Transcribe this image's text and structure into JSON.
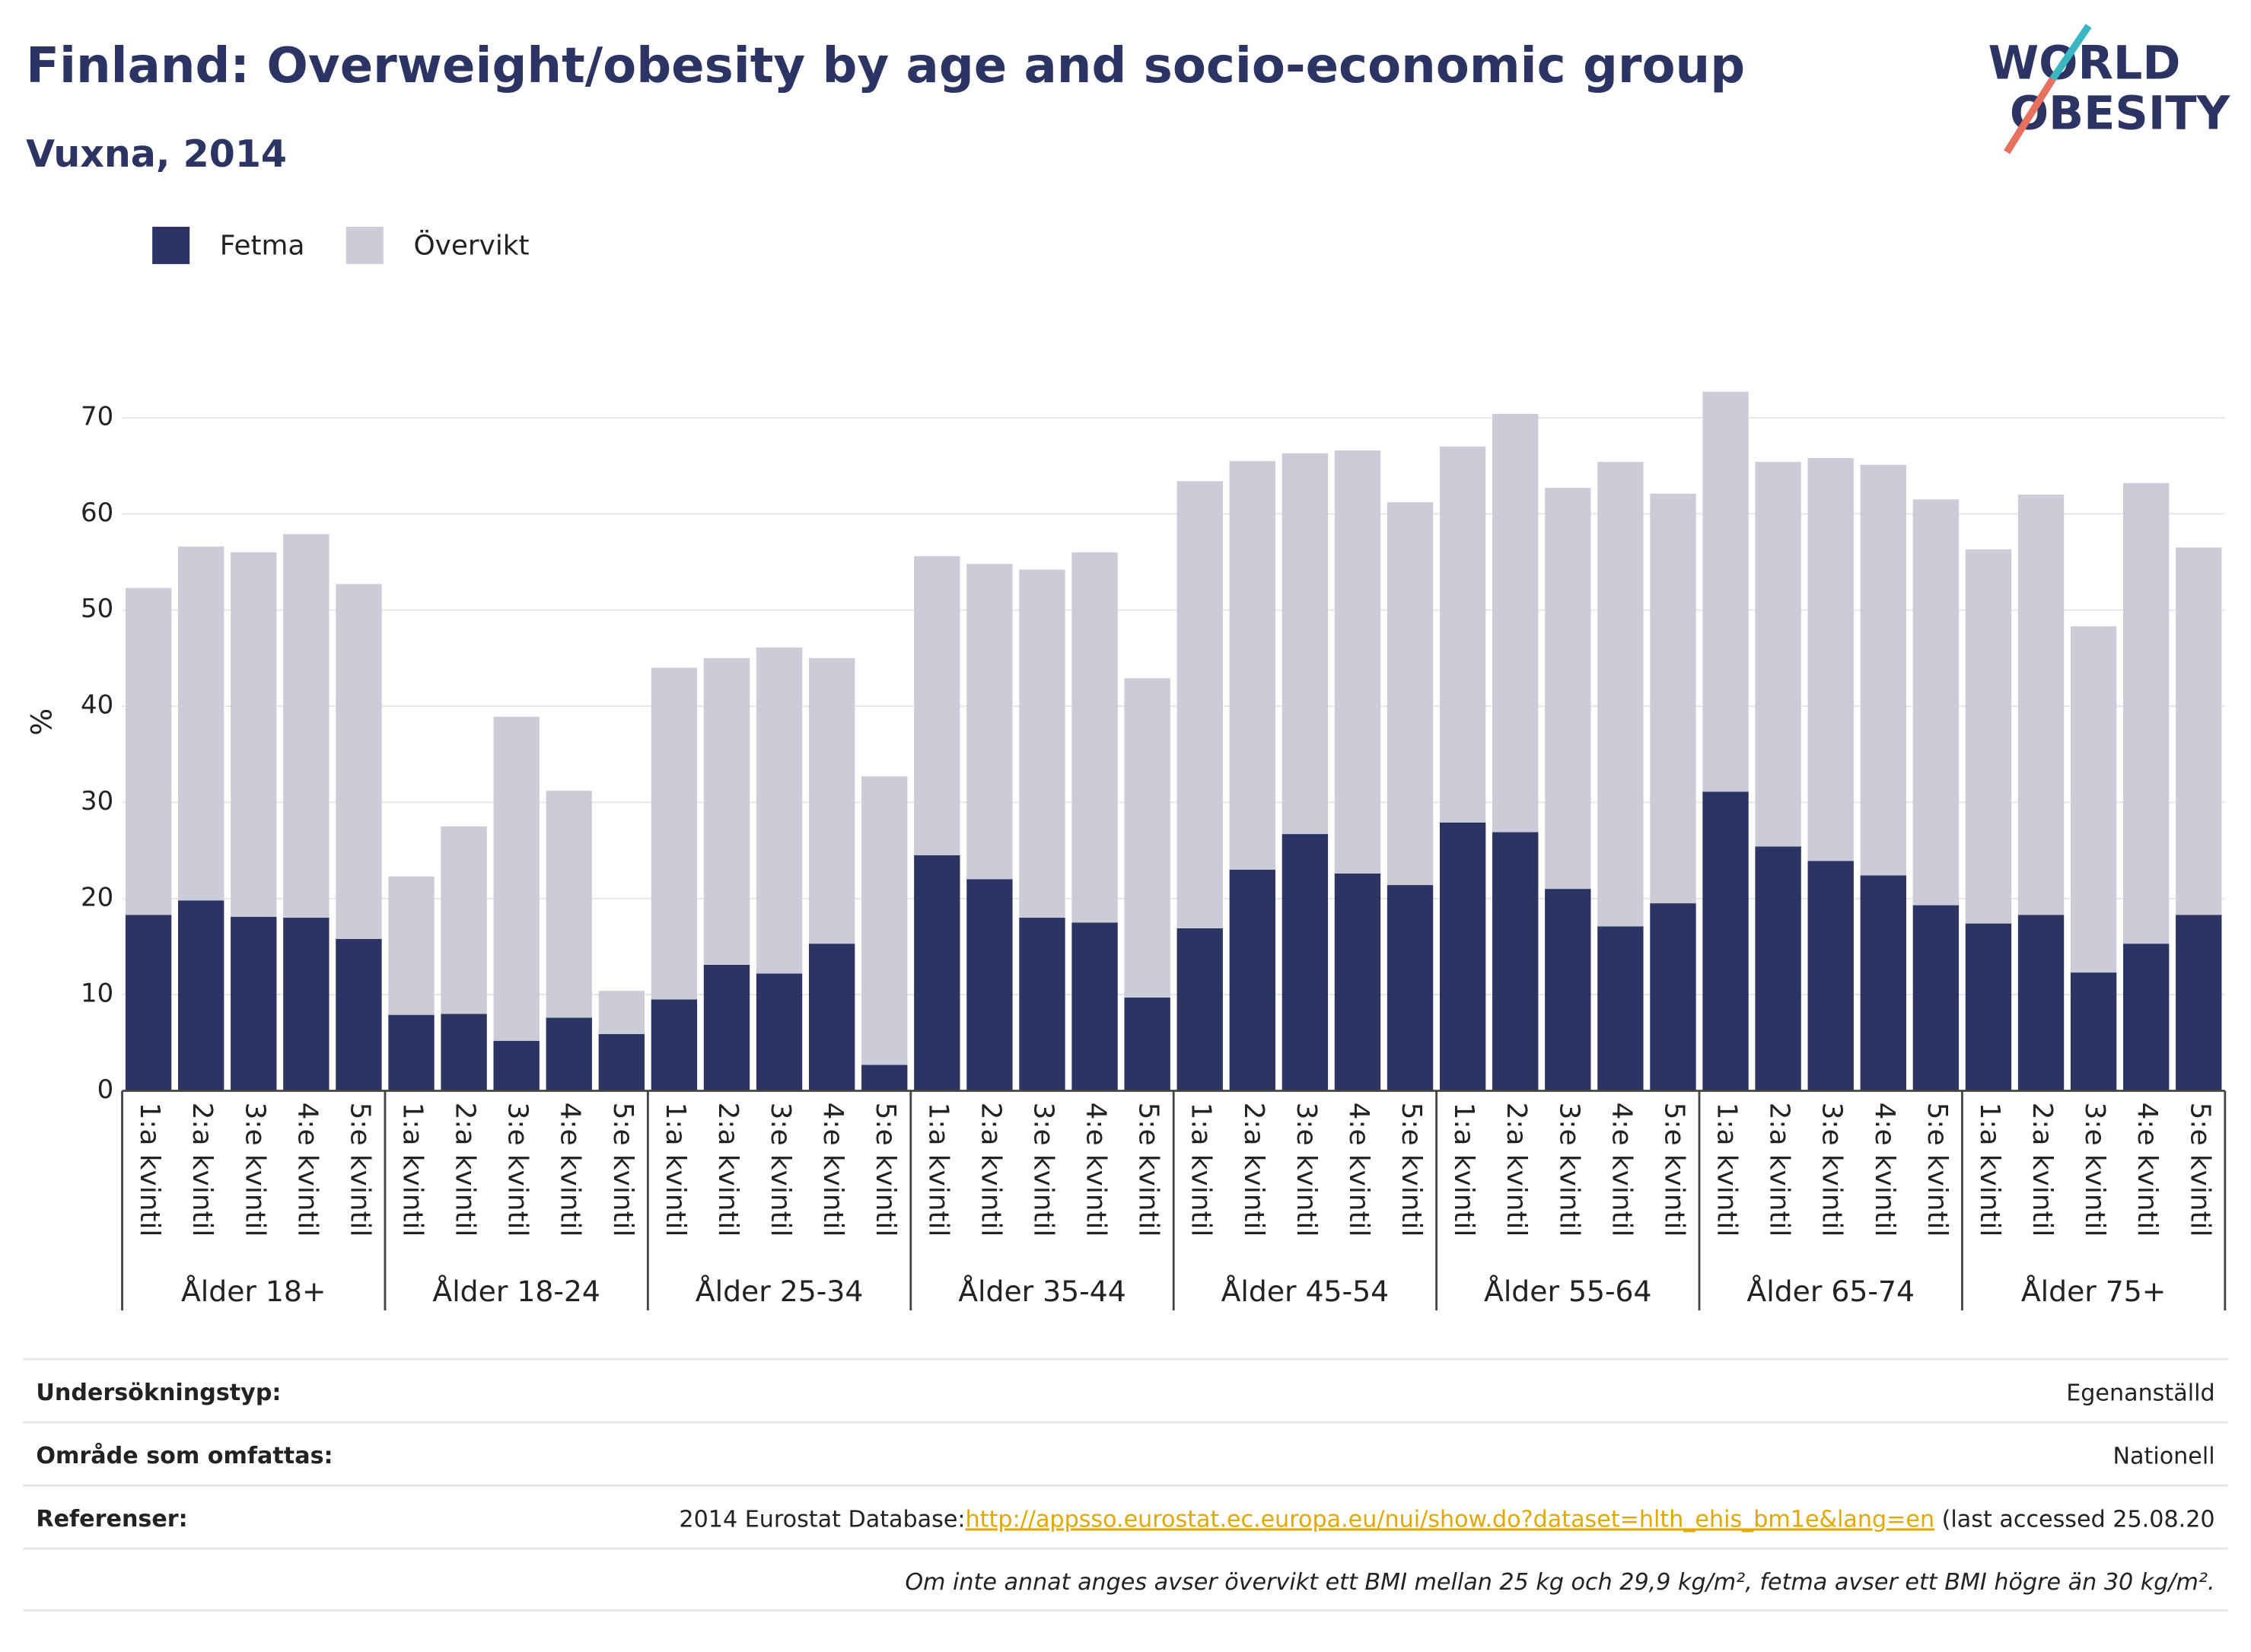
{
  "chart_data": {
    "type": "stacked_bar",
    "title": "Finland: Overweight/obesity by age and socio-economic group",
    "subtitle": "Vuxna, 2014",
    "logo": [
      "WORLD",
      "OBESITY"
    ],
    "ylabel": "%",
    "categories": [
      "1:a kvintil",
      "2:a kvintil",
      "3:e kvintil",
      "4:e kvintil",
      "5:e kvintil",
      "1:a kvintil",
      "2:a kvintil",
      "3:e kvintil",
      "4:e kvintil",
      "5:e kvintil",
      "1:a kvintil",
      "2:a kvintil",
      "3:e kvintil",
      "4:e kvintil",
      "5:e kvintil",
      "1:a kvintil",
      "2:a kvintil",
      "3:e kvintil",
      "4:e kvintil",
      "5:e kvintil",
      "1:a kvintil",
      "2:a kvintil",
      "3:e kvintil",
      "4:e kvintil",
      "5:e kvintil",
      "1:a kvintil",
      "2:a kvintil",
      "3:e kvintil",
      "4:e kvintil",
      "5:e kvintil",
      "1:a kvintil",
      "2:a kvintil",
      "3:e kvintil",
      "4:e kvintil",
      "5:e kvintil",
      "1:a kvintil",
      "2:a kvintil",
      "3:e kvintil",
      "4:e kvintil",
      "5:e kvintil"
    ],
    "groups": [
      "Ålder 18+",
      "Ålder 18-24",
      "Ålder 25-34",
      "Ålder 35-44",
      "Ålder 45-54",
      "Ålder 55-64",
      "Ålder 65-74",
      "Ålder 75+"
    ],
    "series": [
      {
        "name": "Fetma",
        "color": "#2b3462",
        "values": [
          18.3,
          19.8,
          18.1,
          18.0,
          15.8,
          7.9,
          8.0,
          5.2,
          7.6,
          5.9,
          9.5,
          13.1,
          12.2,
          15.3,
          2.7,
          24.5,
          22.0,
          18.0,
          17.5,
          9.7,
          16.9,
          23.0,
          26.7,
          22.6,
          21.4,
          27.9,
          26.9,
          21.0,
          17.1,
          19.5,
          31.1,
          25.4,
          23.9,
          22.4,
          19.3,
          17.4,
          18.3,
          12.3,
          15.3,
          18.3
        ]
      },
      {
        "name": "Övervikt",
        "color": "#cbccd8",
        "values": [
          34.0,
          36.8,
          37.9,
          39.9,
          36.9,
          14.4,
          19.5,
          33.7,
          23.6,
          4.5,
          34.5,
          31.9,
          33.9,
          29.7,
          30.0,
          31.1,
          32.8,
          36.2,
          38.5,
          33.2,
          46.5,
          42.5,
          39.6,
          44.0,
          39.8,
          39.1,
          43.5,
          41.7,
          48.3,
          42.6,
          41.6,
          40.0,
          41.9,
          42.7,
          42.2,
          38.9,
          43.7,
          36.0,
          47.9,
          38.2
        ]
      }
    ],
    "ylim": [
      0,
      70.3
    ],
    "yticks": [
      0,
      10,
      20,
      30,
      40,
      50,
      60,
      70
    ],
    "grid": true,
    "legend": "top-left"
  },
  "info": {
    "rows": [
      {
        "label": "Undersökningstyp:",
        "value": "Egenanställd"
      },
      {
        "label": "Område som omfattas:",
        "value": "Nationell"
      },
      {
        "label": "Referenser:",
        "value": "2014 Eurostat Database:",
        "link": "http://appsso.eurostat.ec.europa.eu/nui/show.do?dataset=hlth_ehis_bm1e&lang=en",
        "suffix": " (last accessed 25.08.20"
      }
    ],
    "note": "Om inte annat anges avser övervikt ett BMI mellan 25 kg och 29,9 kg/m², fetma avser ett BMI högre än 30 kg/m²."
  }
}
